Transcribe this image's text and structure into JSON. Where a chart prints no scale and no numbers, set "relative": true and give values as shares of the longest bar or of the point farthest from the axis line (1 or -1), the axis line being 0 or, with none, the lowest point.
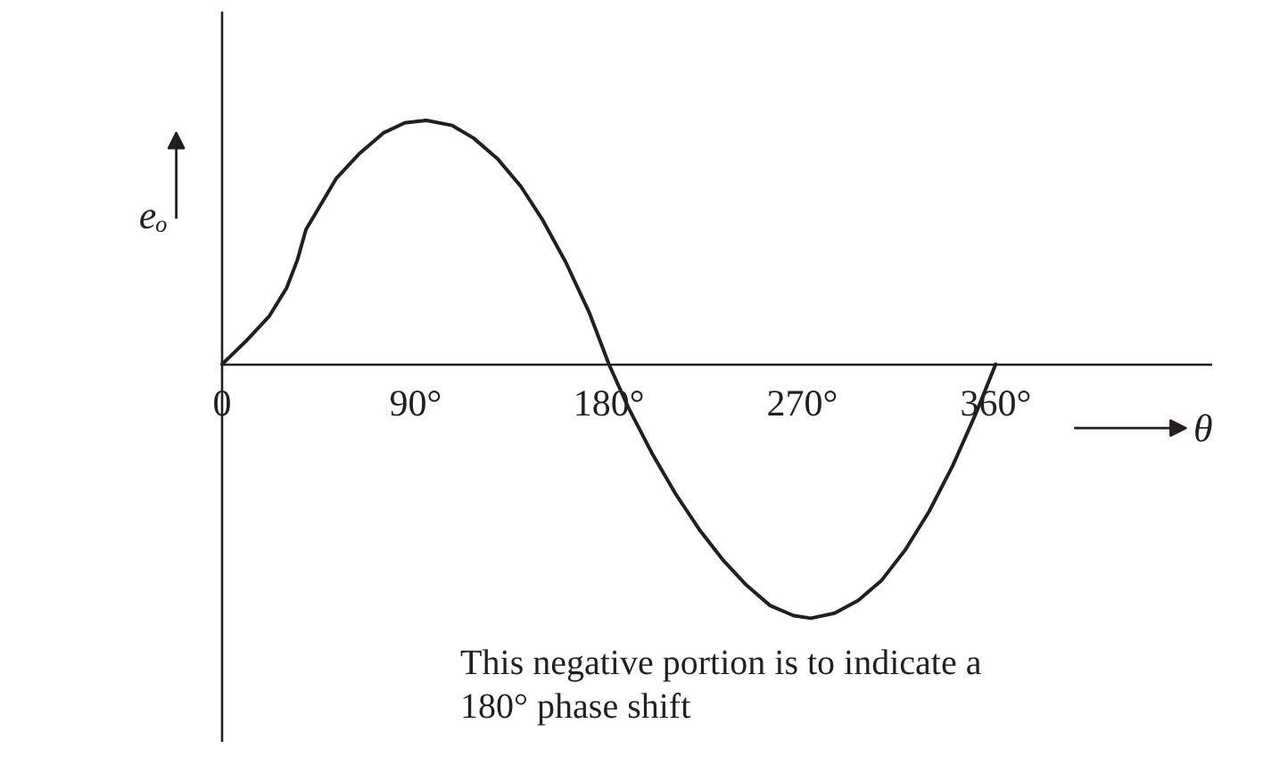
{
  "chart_data": {
    "type": "line",
    "xlabel": "θ",
    "ylabel": "eₒ",
    "annotations": [
      "This negative portion is to indicate a 180° phase shift"
    ],
    "relative": true,
    "x": [
      0,
      11,
      22,
      30,
      35,
      39,
      46,
      53,
      64,
      75,
      85,
      95,
      107,
      117,
      128,
      139,
      149,
      160,
      171,
      180,
      189,
      200,
      211,
      222,
      233,
      244,
      255,
      266,
      274,
      285,
      296,
      307,
      318,
      329,
      340,
      351,
      360
    ],
    "series": [
      {
        "color": "#231f20",
        "values": [
          0,
          0.09,
          0.19,
          0.3,
          0.41,
          0.53,
          0.63,
          0.73,
          0.83,
          0.91,
          0.95,
          0.96,
          0.94,
          0.89,
          0.81,
          0.7,
          0.57,
          0.4,
          0.2,
          0,
          -0.17,
          -0.35,
          -0.51,
          -0.65,
          -0.77,
          -0.87,
          -0.95,
          -0.99,
          -1,
          -0.98,
          -0.93,
          -0.85,
          -0.73,
          -0.58,
          -0.4,
          -0.19,
          0
        ]
      }
    ],
    "xlim": [
      0,
      461
    ],
    "xticks": [
      0,
      {
        "value": 90,
        "label": "90°"
      },
      {
        "value": 180,
        "label": "180°"
      },
      {
        "value": 270,
        "label": "270°"
      },
      {
        "value": 360,
        "label": "360°"
      }
    ],
    "grid": false,
    "marker": "none",
    "line_style": "solid"
  }
}
